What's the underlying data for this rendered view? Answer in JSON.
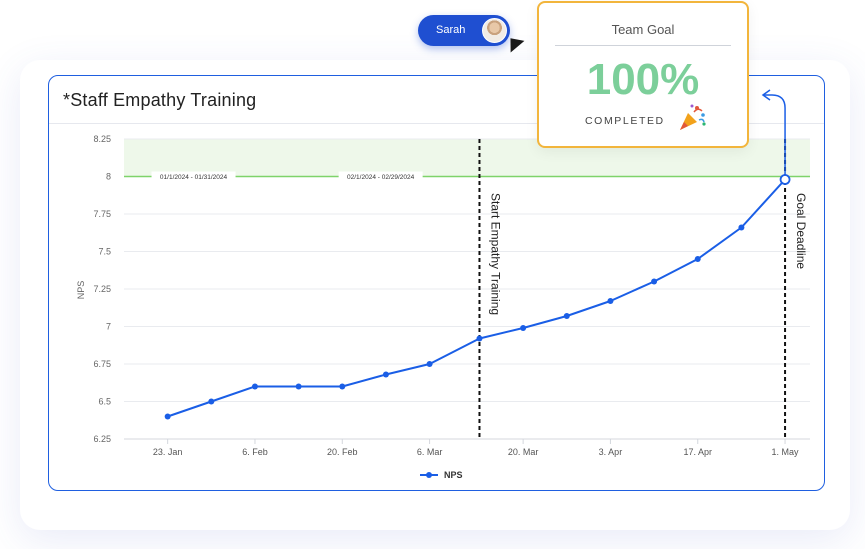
{
  "card": {
    "title": "*Staff Empathy Training"
  },
  "user": {
    "name": "Sarah"
  },
  "goal": {
    "title": "Team Goal",
    "percent": "100%",
    "status": "COMPLETED",
    "icon": "party-popper-icon"
  },
  "colors": {
    "line": "#1a5ee6",
    "goal_band": "#eef8ea",
    "goal_line": "#7ed36a",
    "card_border": "#1f5fe0",
    "goal_border": "#f2b53c",
    "percent": "#7ccf9a"
  },
  "chart_data": {
    "type": "line",
    "ylabel": "NPS",
    "ylim": [
      6.25,
      8.25
    ],
    "y_ticks": [
      "8.25",
      "8",
      "7.75",
      "7.5",
      "7.25",
      "7",
      "6.75",
      "6.5",
      "6.25"
    ],
    "x_tick_labels": [
      "23. Jan",
      "6. Feb",
      "20. Feb",
      "6. Mar",
      "20. Mar",
      "3. Apr",
      "17. Apr",
      "1. May"
    ],
    "series": [
      {
        "name": "NPS",
        "x": [
          "2024-01-23",
          "2024-01-30",
          "2024-02-06",
          "2024-02-13",
          "2024-02-20",
          "2024-02-27",
          "2024-03-05",
          "2024-03-13",
          "2024-03-20",
          "2024-03-27",
          "2024-04-03",
          "2024-04-10",
          "2024-04-17",
          "2024-04-24",
          "2024-05-01"
        ],
        "values": [
          6.4,
          6.5,
          6.6,
          6.6,
          6.6,
          6.68,
          6.75,
          6.92,
          6.99,
          7.07,
          7.17,
          7.3,
          7.45,
          7.66,
          7.98
        ]
      }
    ],
    "goal_line": {
      "value": 8,
      "range_labels": [
        "01/1/2024 - 01/31/2024",
        "02/1/2024 - 02/29/2024"
      ]
    },
    "annotations": [
      {
        "label": "Start Empathy Training",
        "x": "2024-03-13"
      },
      {
        "label": "Goal Deadline",
        "x": "2024-05-01"
      }
    ],
    "legend": "bottom-center",
    "grid": true
  }
}
